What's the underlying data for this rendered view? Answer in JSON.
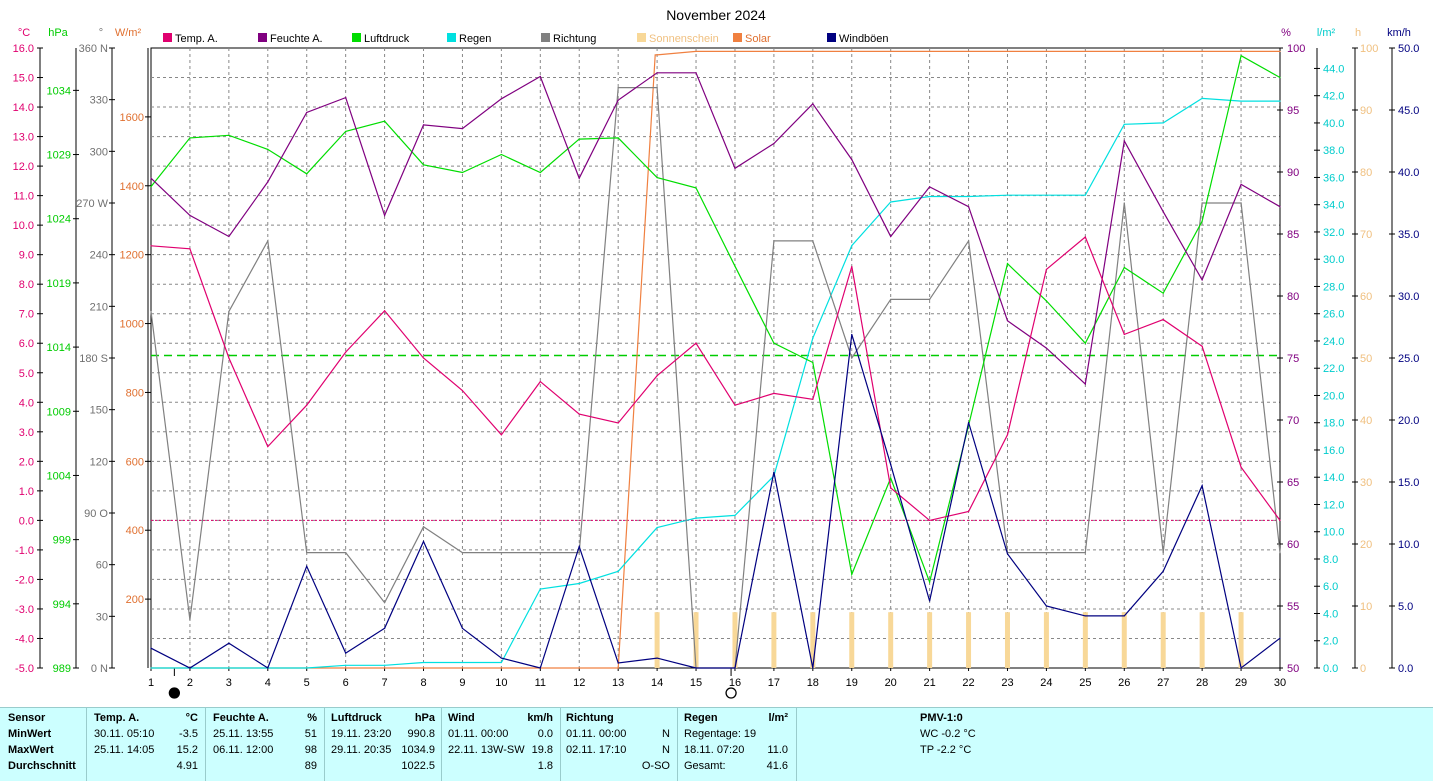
{
  "title": "November 2024",
  "axes": {
    "temp": {
      "unit": "°C",
      "ticks": [
        "16.0",
        "15.0",
        "14.0",
        "13.0",
        "12.0",
        "11.0",
        "10.0",
        "9.0",
        "8.0",
        "7.0",
        "6.0",
        "5.0",
        "4.0",
        "3.0",
        "2.0",
        "1.0",
        "0.0",
        "-1.0",
        "-2.0",
        "-3.0",
        "-4.0",
        "-5.0"
      ],
      "color": "#e0006f"
    },
    "pressure": {
      "unit": "hPa",
      "ticks": [
        "1034",
        "1029",
        "1024",
        "1019",
        "1014",
        "1009",
        "1004",
        "999",
        "994",
        "989"
      ],
      "color": "#00cc00"
    },
    "direction": {
      "unit": "°",
      "ticks": [
        "360 N",
        "330",
        "300",
        "270 W",
        "240",
        "210",
        "180 S",
        "150",
        "120",
        "90  O",
        "60",
        "30",
        "0   N"
      ],
      "color": "#707070"
    },
    "solar": {
      "unit": "W/m²",
      "ticks": [
        "1600",
        "1400",
        "1200",
        "1000",
        "800",
        "600",
        "400",
        "200"
      ],
      "color": "#e07030"
    },
    "humidity": {
      "unit": "%",
      "ticks": [
        "100",
        "95",
        "90",
        "85",
        "80",
        "75",
        "70",
        "65",
        "60",
        "55",
        "50"
      ],
      "color": "#800080"
    },
    "rain": {
      "unit": "l/m²",
      "ticks": [
        "44.0",
        "42.0",
        "40.0",
        "38.0",
        "36.0",
        "34.0",
        "32.0",
        "30.0",
        "28.0",
        "26.0",
        "24.0",
        "22.0",
        "20.0",
        "18.0",
        "16.0",
        "14.0",
        "12.0",
        "10.0",
        "8.0",
        "6.0",
        "4.0",
        "2.0",
        "0.0"
      ],
      "color": "#00cccc"
    },
    "sunshine": {
      "unit": "h",
      "ticks": [
        "100",
        "90",
        "80",
        "70",
        "60",
        "50",
        "40",
        "30",
        "20",
        "10",
        "0"
      ],
      "color": "#f0c080"
    },
    "wind": {
      "unit": "km/h",
      "ticks": [
        "50.0",
        "45.0",
        "40.0",
        "35.0",
        "30.0",
        "25.0",
        "20.0",
        "15.0",
        "10.0",
        "5.0",
        "0.0"
      ],
      "color": "#000080"
    },
    "x_ticks": [
      "1",
      "2",
      "3",
      "4",
      "5",
      "6",
      "7",
      "8",
      "9",
      "10",
      "11",
      "12",
      "13",
      "14",
      "15",
      "16",
      "17",
      "18",
      "19",
      "20",
      "21",
      "22",
      "23",
      "24",
      "25",
      "26",
      "27",
      "28",
      "29",
      "30"
    ]
  },
  "legend": [
    {
      "label": "Temp. A.",
      "color": "#e0006f"
    },
    {
      "label": "Feuchte A.",
      "color": "#800080"
    },
    {
      "label": "Luftdruck",
      "color": "#00dd00"
    },
    {
      "label": "Regen",
      "color": "#00e0e0"
    },
    {
      "label": "Richtung",
      "color": "#808080"
    },
    {
      "label": "Sonnenschein",
      "color": "#f8d898"
    },
    {
      "label": "Solar",
      "color": "#f08040"
    },
    {
      "label": "Windböen",
      "color": "#000080"
    }
  ],
  "chart_data": {
    "type": "line",
    "title": "November 2024",
    "x": [
      1,
      2,
      3,
      4,
      5,
      6,
      7,
      8,
      9,
      10,
      11,
      12,
      13,
      14,
      15,
      16,
      17,
      18,
      19,
      20,
      21,
      22,
      23,
      24,
      25,
      26,
      27,
      28,
      29,
      30
    ],
    "series": [
      {
        "name": "Temp. A.",
        "unit": "°C",
        "color": "#e0006f",
        "values": [
          9.3,
          9.2,
          5.5,
          2.5,
          3.9,
          5.7,
          7.1,
          5.5,
          4.4,
          2.9,
          4.7,
          3.6,
          3.3,
          4.9,
          6.0,
          3.9,
          4.3,
          4.1,
          8.6,
          1.1,
          -0.0,
          0.3,
          2.9,
          8.5,
          9.6,
          6.3,
          6.8,
          5.9,
          1.8,
          0.0
        ],
        "ylim": [
          -5,
          16
        ]
      },
      {
        "name": "Feuchte A.",
        "unit": "%",
        "color": "#800080",
        "values": [
          89.5,
          86.5,
          84.8,
          89.2,
          94.8,
          96.0,
          86.5,
          93.8,
          93.5,
          95.9,
          97.7,
          89.5,
          95.8,
          98.0,
          98.0,
          90.3,
          92.3,
          95.5,
          91.0,
          84.8,
          88.8,
          87.2,
          78.0,
          75.8,
          72.9,
          92.5,
          86.8,
          81.3,
          89.0,
          87.2
        ],
        "ylim": [
          50,
          100
        ]
      },
      {
        "name": "Luftdruck",
        "unit": "hPa",
        "color": "#00dd00",
        "values": [
          1026.5,
          1030.3,
          1030.5,
          1029.4,
          1027.5,
          1030.8,
          1031.6,
          1028.2,
          1027.6,
          1029.0,
          1027.6,
          1030.2,
          1030.3,
          1027.2,
          1026.4,
          1020.3,
          1014.3,
          1012.8,
          996.3,
          1003.8,
          995.7,
          1007.9,
          1020.5,
          1017.6,
          1014.3,
          1020.2,
          1018.2,
          1023.8,
          1036.7,
          1035.0
        ],
        "ylim": [
          989,
          1037.3
        ]
      },
      {
        "name": "Regen",
        "unit": "l/m²",
        "color": "#00e0e0",
        "values": [
          0.0,
          0.0,
          0.0,
          0.0,
          0.0,
          0.2,
          0.2,
          0.4,
          0.4,
          0.4,
          5.8,
          6.2,
          7.1,
          10.3,
          11.0,
          11.2,
          14.1,
          24.2,
          31.0,
          34.2,
          34.6,
          34.6,
          34.7,
          34.7,
          34.7,
          39.9,
          40.0,
          41.8,
          41.6,
          41.6
        ],
        "ylim": [
          0,
          45.5
        ]
      },
      {
        "name": "Richtung",
        "unit": "°",
        "color": "#808080",
        "values": [
          207,
          28,
          207,
          248,
          67,
          67,
          38,
          82,
          67,
          67,
          67,
          67,
          337,
          337,
          0,
          0,
          248,
          248,
          180,
          214,
          214,
          248,
          67,
          67,
          67,
          270,
          67,
          270,
          270,
          67
        ],
        "ylim": [
          0,
          360
        ]
      },
      {
        "name": "Sonnenschein",
        "unit": "h",
        "color": "#f8d898",
        "values": [
          0,
          0,
          0,
          0,
          0,
          0,
          0,
          0,
          0,
          0,
          0,
          0,
          0,
          9,
          9,
          9,
          9,
          9,
          9,
          9,
          9,
          9,
          9,
          9,
          9,
          9,
          9,
          9,
          9,
          0
        ],
        "ylim": [
          0,
          100
        ]
      },
      {
        "name": "Solar",
        "unit": "W/m²",
        "color": "#f08040",
        "values": [
          0,
          0,
          0,
          0,
          0,
          0,
          0,
          0,
          0,
          0,
          0,
          0,
          0,
          1780,
          1790,
          1790,
          1790,
          1790,
          1790,
          1790,
          1790,
          1790,
          1790,
          1790,
          1790,
          1790,
          1790,
          1790,
          1790,
          1790
        ],
        "ylim": [
          0,
          1800
        ]
      },
      {
        "name": "Windböen",
        "unit": "km/h",
        "color": "#000080",
        "values": [
          1.6,
          0.0,
          2.0,
          0.0,
          8.2,
          1.2,
          3.2,
          10.2,
          3.2,
          0.8,
          0.0,
          9.8,
          0.4,
          0.8,
          0.0,
          0.0,
          15.8,
          0.0,
          26.9,
          16.4,
          5.4,
          19.8,
          9.2,
          5.0,
          4.2,
          4.2,
          7.8,
          14.7,
          0.0,
          2.4
        ],
        "ylim": [
          0,
          50
        ]
      }
    ],
    "reference_lines": [
      {
        "series": "Temp. A.",
        "value": 0.0,
        "style": "dotted",
        "color": "#e0006f"
      },
      {
        "series": "Feuchte A.",
        "value": 75.2,
        "style": "dashed",
        "color": "#00cc00"
      }
    ],
    "moon_phases": [
      {
        "day": 1.6,
        "symbol": "new"
      },
      {
        "day": 15.9,
        "symbol": "full"
      }
    ],
    "grid": true
  },
  "stats": {
    "sensor": {
      "header": "Sensor",
      "rows": [
        "MinWert",
        "MaxWert",
        "Durchschnitt"
      ]
    },
    "temp": {
      "header": "Temp. A.",
      "unit": "°C",
      "rows": [
        [
          "30.11.  05:10",
          "-3.5"
        ],
        [
          "25.11.  14:05",
          "15.2"
        ],
        [
          "",
          "4.91"
        ]
      ]
    },
    "humidity": {
      "header": "Feuchte A.",
      "unit": "%",
      "rows": [
        [
          "25.11.  13:55",
          "51"
        ],
        [
          "06.11.  12:00",
          "98"
        ],
        [
          "",
          "89"
        ]
      ]
    },
    "pressure": {
      "header": "Luftdruck",
      "unit": "hPa",
      "rows": [
        [
          "19.11.  23:20",
          "990.8"
        ],
        [
          "29.11.  20:35",
          "1034.9"
        ],
        [
          "",
          "1022.5"
        ]
      ]
    },
    "wind": {
      "header": "Wind",
      "unit": "km/h",
      "rows": [
        [
          "01.11.  00:00",
          "0.0"
        ],
        [
          "22.11.  13W-SW",
          "19.8"
        ],
        [
          "",
          "1.8"
        ]
      ]
    },
    "direction": {
      "header": "Richtung",
      "rows": [
        [
          "01.11.  00:00",
          "N"
        ],
        [
          "02.11.  17:10",
          "N"
        ],
        [
          "",
          "O-SO"
        ]
      ]
    },
    "rain": {
      "header": "Regen",
      "unit": "l/m²",
      "rows": [
        [
          "Regentage: 19",
          ""
        ],
        [
          "18.11.  07:20",
          "11.0"
        ],
        [
          "Gesamt:",
          "41.6"
        ]
      ]
    },
    "pmv": {
      "header": "PMV-1:0",
      "rows": [
        "WC -0.2 °C",
        "TP -2.2 °C"
      ]
    }
  }
}
